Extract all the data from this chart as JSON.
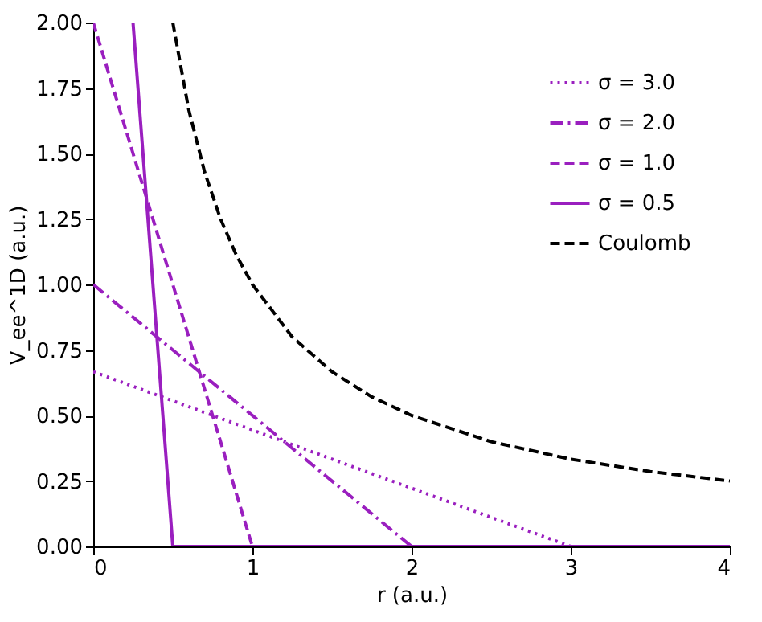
{
  "chart_data": {
    "type": "line",
    "xlabel": "r (a.u.)",
    "ylabel": "V_ee^1D (a.u.)",
    "xlim": [
      0,
      4
    ],
    "ylim": [
      0,
      2.0
    ],
    "xticks": [
      0,
      1,
      2,
      3,
      4
    ],
    "yticks": [
      {
        "value": 0,
        "label": "0.00"
      },
      {
        "value": 0.25,
        "label": "0.25"
      },
      {
        "value": 0.5,
        "label": "0.50"
      },
      {
        "value": 0.75,
        "label": "0.75"
      },
      {
        "value": 1.0,
        "label": "1.00"
      },
      {
        "value": 1.25,
        "label": "1.25"
      },
      {
        "value": 1.5,
        "label": "1.50"
      },
      {
        "value": 1.75,
        "label": "1.75"
      },
      {
        "value": 2.0,
        "label": "2.00"
      }
    ],
    "grid": false,
    "legend": "top right",
    "series": [
      {
        "name": "σ = 3.0",
        "color": "#9a1fbf",
        "line_style": "dotted",
        "x": [
          0,
          3,
          4
        ],
        "values": [
          0.667,
          0,
          0
        ]
      },
      {
        "name": "σ = 2.0",
        "color": "#9a1fbf",
        "line_style": "dashdot",
        "x": [
          0,
          2,
          4
        ],
        "values": [
          1.0,
          0,
          0
        ]
      },
      {
        "name": "σ = 1.0",
        "color": "#9a1fbf",
        "line_style": "dashed",
        "x": [
          0,
          1,
          4
        ],
        "values": [
          2.0,
          0,
          0
        ]
      },
      {
        "name": "σ = 0.5",
        "color": "#9a1fbf",
        "line_style": "solid",
        "x": [
          0.25,
          0.5,
          4
        ],
        "values": [
          2.0,
          0,
          0
        ]
      },
      {
        "name": "Coulomb",
        "color": "#000000",
        "line_style": "dashed",
        "x": [
          0.5,
          0.6,
          0.7,
          0.8,
          0.9,
          1.0,
          1.25,
          1.5,
          1.75,
          2.0,
          2.5,
          3.0,
          3.5,
          4.0
        ],
        "values": [
          2.0,
          1.667,
          1.429,
          1.25,
          1.111,
          1.0,
          0.8,
          0.667,
          0.571,
          0.5,
          0.4,
          0.333,
          0.286,
          0.25
        ]
      }
    ]
  }
}
